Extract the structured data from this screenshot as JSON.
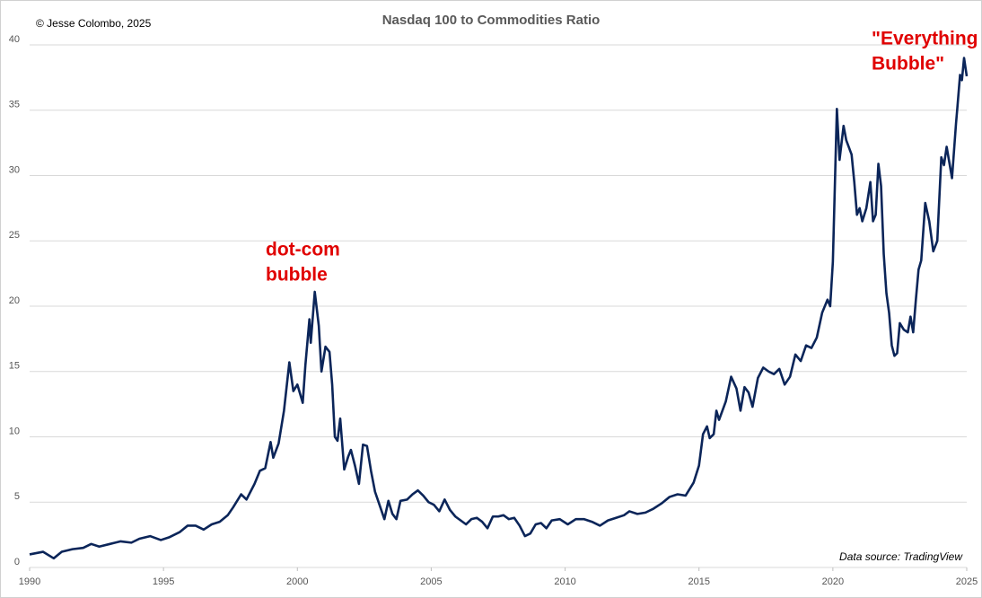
{
  "chart_data": {
    "type": "line",
    "title": "Nasdaq 100 to Commodities Ratio",
    "credit": "© Jesse Colombo, 2025",
    "source": "Data source: TradingView",
    "annotations": [
      [
        "dot-com",
        "bubble"
      ],
      [
        "\"Everything",
        "Bubble\""
      ]
    ],
    "color": "#0b2559",
    "grid": true,
    "xlim": [
      1990,
      2025
    ],
    "xticks": [
      1990,
      1995,
      2000,
      2005,
      2010,
      2015,
      2020,
      2025
    ],
    "ylim": [
      0,
      40
    ],
    "yticks": [
      0,
      5,
      10,
      15,
      20,
      25,
      30,
      35,
      40
    ],
    "x": [
      1990.0,
      1990.5,
      1990.9,
      1991.2,
      1991.6,
      1992.0,
      1992.3,
      1992.6,
      1993.0,
      1993.4,
      1993.8,
      1994.1,
      1994.5,
      1994.9,
      1995.2,
      1995.6,
      1995.9,
      1996.2,
      1996.5,
      1996.8,
      1997.1,
      1997.4,
      1997.6,
      1997.9,
      1998.1,
      1998.4,
      1998.6,
      1998.8,
      1999.0,
      1999.1,
      1999.3,
      1999.5,
      1999.7,
      1999.85,
      2000.0,
      2000.2,
      2000.3,
      2000.45,
      2000.5,
      2000.65,
      2000.8,
      2000.9,
      2001.05,
      2001.2,
      2001.3,
      2001.4,
      2001.5,
      2001.6,
      2001.75,
      2001.9,
      2002.0,
      2002.15,
      2002.3,
      2002.45,
      2002.6,
      2002.75,
      2002.9,
      2003.1,
      2003.25,
      2003.4,
      2003.55,
      2003.7,
      2003.85,
      2004.1,
      2004.3,
      2004.5,
      2004.7,
      2004.9,
      2005.1,
      2005.3,
      2005.5,
      2005.7,
      2005.9,
      2006.1,
      2006.3,
      2006.5,
      2006.7,
      2006.9,
      2007.1,
      2007.3,
      2007.5,
      2007.7,
      2007.9,
      2008.1,
      2008.3,
      2008.5,
      2008.7,
      2008.9,
      2009.1,
      2009.3,
      2009.5,
      2009.8,
      2010.1,
      2010.4,
      2010.7,
      2011.0,
      2011.3,
      2011.6,
      2011.9,
      2012.2,
      2012.4,
      2012.7,
      2013.0,
      2013.3,
      2013.6,
      2013.9,
      2014.2,
      2014.5,
      2014.8,
      2015.0,
      2015.15,
      2015.3,
      2015.4,
      2015.55,
      2015.65,
      2015.75,
      2016.0,
      2016.2,
      2016.4,
      2016.55,
      2016.7,
      2016.85,
      2017.0,
      2017.2,
      2017.4,
      2017.6,
      2017.8,
      2018.0,
      2018.2,
      2018.4,
      2018.6,
      2018.8,
      2019.0,
      2019.2,
      2019.4,
      2019.6,
      2019.8,
      2019.9,
      2020.0,
      2020.15,
      2020.25,
      2020.4,
      2020.5,
      2020.7,
      2020.8,
      2020.9,
      2021.0,
      2021.1,
      2021.25,
      2021.4,
      2021.5,
      2021.6,
      2021.7,
      2021.8,
      2021.9,
      2022.0,
      2022.1,
      2022.2,
      2022.3,
      2022.4,
      2022.5,
      2022.65,
      2022.8,
      2022.9,
      2023.0,
      2023.1,
      2023.2,
      2023.3,
      2023.45,
      2023.6,
      2023.75,
      2023.9,
      2024.05,
      2024.15,
      2024.25,
      2024.45,
      2024.6,
      2024.65,
      2024.75,
      2024.82,
      2024.9,
      2025.0
    ],
    "values": [
      1.0,
      1.2,
      0.7,
      1.2,
      1.4,
      1.5,
      1.8,
      1.6,
      1.8,
      2.0,
      1.9,
      2.2,
      2.4,
      2.1,
      2.3,
      2.7,
      3.2,
      3.2,
      2.9,
      3.3,
      3.5,
      4.0,
      4.6,
      5.6,
      5.2,
      6.4,
      7.4,
      7.6,
      9.6,
      8.4,
      9.5,
      12.0,
      15.7,
      13.5,
      14.0,
      12.6,
      15.5,
      19.0,
      17.2,
      21.1,
      18.5,
      15.0,
      16.9,
      16.5,
      14.0,
      10.0,
      9.7,
      11.4,
      7.5,
      8.5,
      9.0,
      7.8,
      6.4,
      9.4,
      9.3,
      7.4,
      5.8,
      4.6,
      3.7,
      5.1,
      4.1,
      3.7,
      5.1,
      5.2,
      5.6,
      5.9,
      5.5,
      5.0,
      4.8,
      4.3,
      5.2,
      4.4,
      3.9,
      3.6,
      3.3,
      3.7,
      3.8,
      3.5,
      3.0,
      3.9,
      3.9,
      4.0,
      3.7,
      3.8,
      3.2,
      2.4,
      2.6,
      3.3,
      3.4,
      3.0,
      3.6,
      3.7,
      3.3,
      3.7,
      3.7,
      3.5,
      3.2,
      3.6,
      3.8,
      4.0,
      4.3,
      4.1,
      4.2,
      4.5,
      4.9,
      5.4,
      5.6,
      5.5,
      6.5,
      7.8,
      10.2,
      10.8,
      9.9,
      10.2,
      12.0,
      11.3,
      12.7,
      14.6,
      13.7,
      12.0,
      13.8,
      13.4,
      12.3,
      14.5,
      15.3,
      15.0,
      14.8,
      15.2,
      14.0,
      14.6,
      16.3,
      15.8,
      17.0,
      16.8,
      17.6,
      19.5,
      20.5,
      20.0,
      23.4,
      35.1,
      31.2,
      33.8,
      32.7,
      31.6,
      29.5,
      27.0,
      27.5,
      26.5,
      27.5,
      29.5,
      26.5,
      27.0,
      30.9,
      29.2,
      24.0,
      21.0,
      19.5,
      17.0,
      16.2,
      16.4,
      18.7,
      18.2,
      18.0,
      19.2,
      18.0,
      20.5,
      22.8,
      23.5,
      27.9,
      26.5,
      24.2,
      25.0,
      31.4,
      30.8,
      32.2,
      29.8,
      34.0,
      35.2,
      37.7,
      37.3,
      39.0,
      37.6
    ]
  }
}
